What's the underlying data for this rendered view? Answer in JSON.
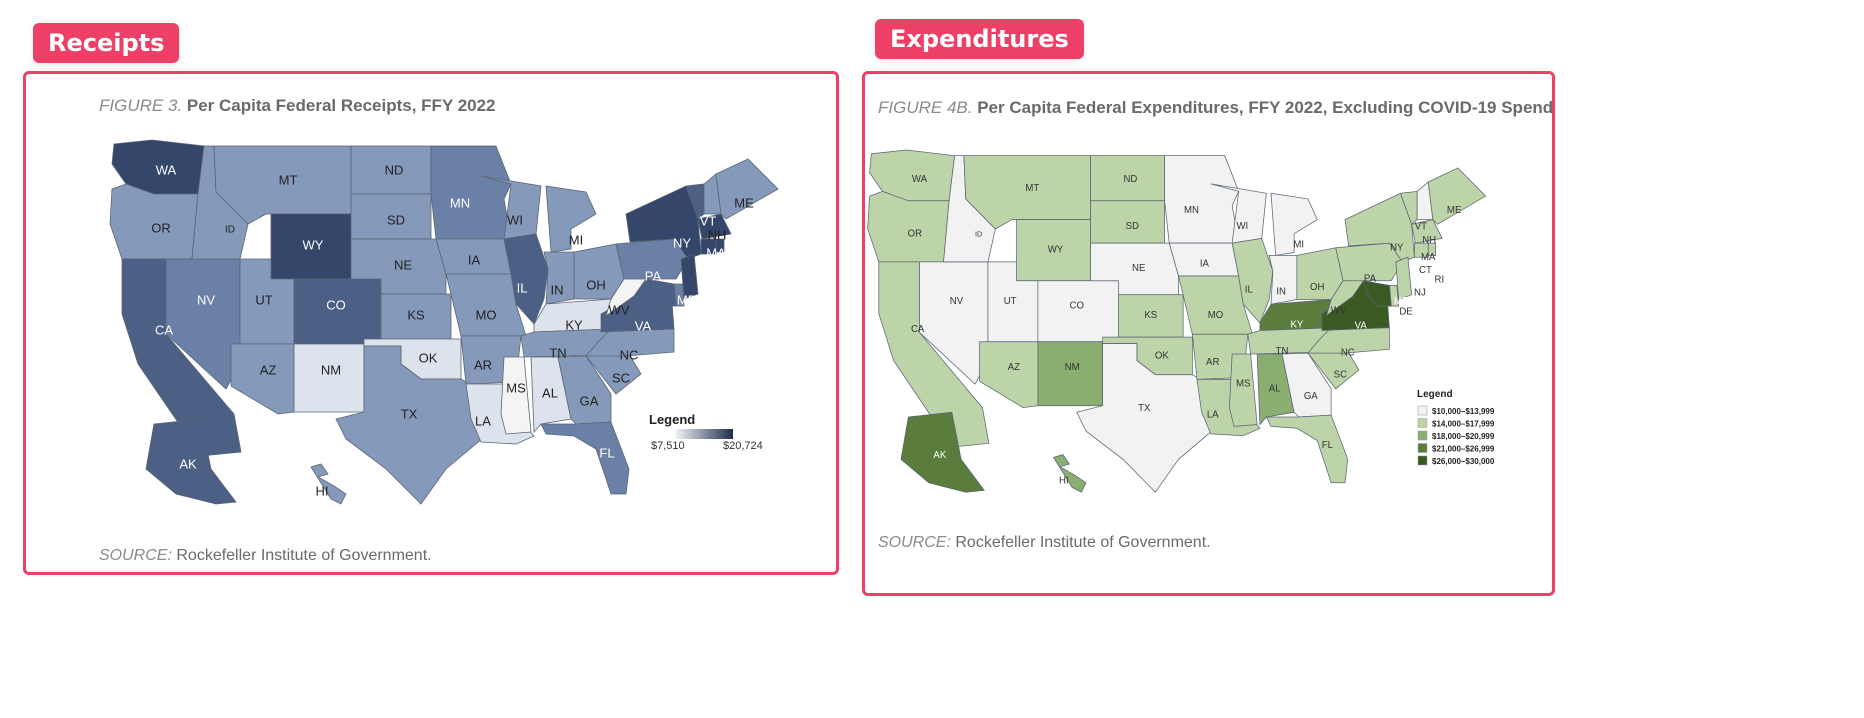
{
  "tags": {
    "receipts": "Receipts",
    "expenditures": "Expenditures"
  },
  "receipts": {
    "figure_label": "FIGURE 3.",
    "title": "Per Capita Federal Receipts, FFY 2022",
    "legend_title": "Legend",
    "legend_min": "$7,510",
    "legend_max": "$20,724",
    "source_label": "SOURCE:",
    "source_text": "Rockefeller Institute of Government.",
    "colors": {
      "light": "#dde3ec",
      "mid": "#8599bb",
      "midDark": "#6b80a6",
      "dark": "#4c5f85",
      "darkest": "#34466a",
      "white": "#f4f4f4"
    },
    "state_levels": {
      "WA": "darkest",
      "OR": "mid",
      "CA": "dark",
      "NV": "midDark",
      "ID": "mid",
      "MT": "mid",
      "WY": "darkest",
      "UT": "mid",
      "CO": "dark",
      "AZ": "mid",
      "NM": "light",
      "ND": "mid",
      "SD": "mid",
      "NE": "mid",
      "KS": "mid",
      "OK": "light",
      "TX": "mid",
      "MN": "midDark",
      "IA": "mid",
      "MO": "mid",
      "AR": "mid",
      "LA": "light",
      "WI": "mid",
      "IL": "dark",
      "MI": "mid",
      "IN": "mid",
      "OH": "mid",
      "KY": "light",
      "TN": "mid",
      "MS": "white",
      "AL": "light",
      "GA": "mid",
      "FL": "midDark",
      "SC": "mid",
      "NC": "mid",
      "VA": "dark",
      "WV": "white",
      "PA": "midDark",
      "NY": "darkest",
      "VT": "dark",
      "NH": "mid",
      "ME": "mid",
      "MA": "darkest",
      "CT": "darkest",
      "RI": "darkest",
      "NJ": "darkest",
      "DE": "midDark",
      "MD": "dark",
      "AK": "dark",
      "HI": "mid"
    }
  },
  "expenditures": {
    "figure_label": "FIGURE 4B.",
    "title": "Per Capita Federal Expenditures, FFY 2022, Excluding COVID-19 Spending",
    "legend_title": "Legend",
    "legend_items": [
      "$10,000–$13,999",
      "$14,000–$17,999",
      "$18,000–$20,999",
      "$21,000–$26,999",
      "$26,000–$30,000"
    ],
    "legend_colors": [
      "#f2f2f2",
      "#bdd3a8",
      "#8aad70",
      "#5a7d3e",
      "#3a5a22"
    ],
    "source_label": "SOURCE:",
    "source_text": "Rockefeller Institute of Government.",
    "state_levels": {
      "WA": 1,
      "OR": 1,
      "CA": 1,
      "NV": 0,
      "ID": 0,
      "MT": 1,
      "WY": 1,
      "UT": 0,
      "CO": 0,
      "AZ": 1,
      "NM": 2,
      "ND": 1,
      "SD": 1,
      "NE": 0,
      "KS": 1,
      "OK": 1,
      "TX": 0,
      "MN": 0,
      "IA": 0,
      "MO": 1,
      "AR": 1,
      "LA": 1,
      "WI": 0,
      "IL": 1,
      "MI": 0,
      "IN": 0,
      "OH": 1,
      "KY": 3,
      "TN": 1,
      "MS": 1,
      "AL": 2,
      "GA": 0,
      "FL": 1,
      "SC": 1,
      "NC": 1,
      "VA": 4,
      "WV": 1,
      "PA": 1,
      "NY": 1,
      "VT": 1,
      "NH": 0,
      "ME": 1,
      "MA": 1,
      "CT": 1,
      "RI": 1,
      "NJ": 1,
      "DE": 1,
      "MD": 4,
      "AK": 3,
      "HI": 2
    }
  }
}
